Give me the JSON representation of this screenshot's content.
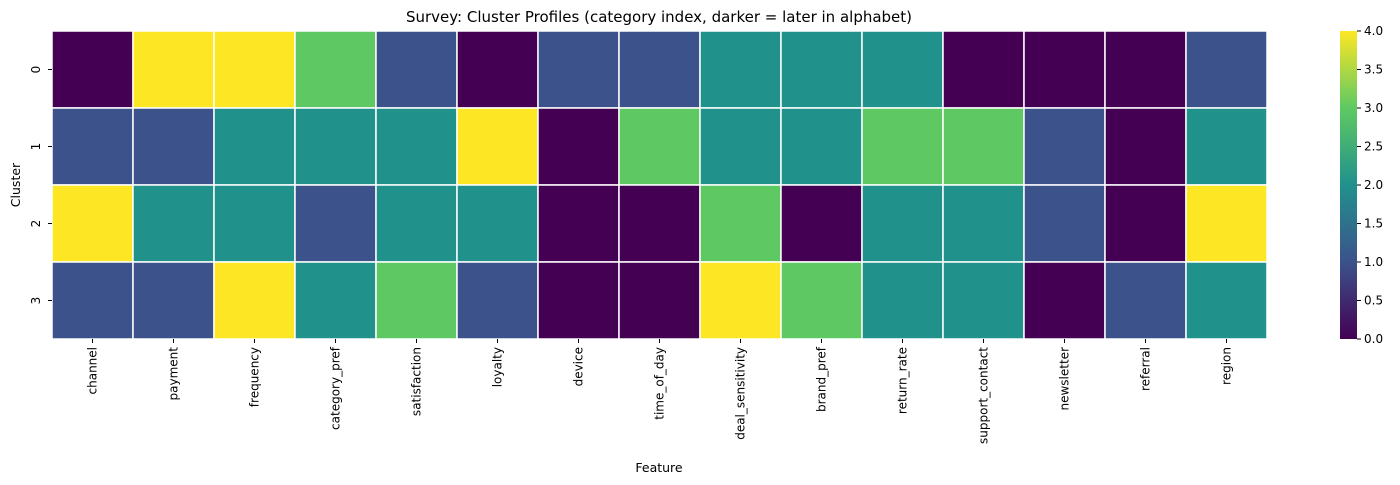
{
  "chart_data": {
    "type": "heatmap",
    "title": "Survey: Cluster Profiles (category index, darker = later in alphabet)",
    "xlabel": "Feature",
    "ylabel": "Cluster",
    "columns": [
      "channel",
      "payment",
      "frequency",
      "category_pref",
      "satisfaction",
      "loyalty",
      "device",
      "time_of_day",
      "deal_sensitivity",
      "brand_pref",
      "return_rate",
      "support_contact",
      "newsletter",
      "referral",
      "region"
    ],
    "rows": [
      "0",
      "1",
      "2",
      "3"
    ],
    "values": [
      [
        0,
        4,
        4,
        3,
        1,
        0,
        1,
        1,
        2,
        2,
        2,
        0,
        0,
        0,
        1
      ],
      [
        1,
        1,
        2,
        2,
        2,
        4,
        0,
        3,
        2,
        2,
        3,
        3,
        1,
        0,
        2
      ],
      [
        4,
        2,
        2,
        1,
        2,
        2,
        0,
        0,
        3,
        0,
        2,
        2,
        1,
        0,
        4
      ],
      [
        1,
        1,
        4,
        2,
        3,
        1,
        0,
        0,
        4,
        3,
        2,
        2,
        0,
        1,
        2
      ]
    ],
    "colormap": "viridis",
    "colors": [
      "#440154",
      "#3b528b",
      "#21918c",
      "#5ec962",
      "#fde725"
    ],
    "grid_line_color": "#ffffff",
    "vmin": 0,
    "vmax": 4,
    "colorbar_ticks": [
      "0.0",
      "0.5",
      "1.0",
      "1.5",
      "2.0",
      "2.5",
      "3.0",
      "3.5",
      "4.0"
    ]
  }
}
